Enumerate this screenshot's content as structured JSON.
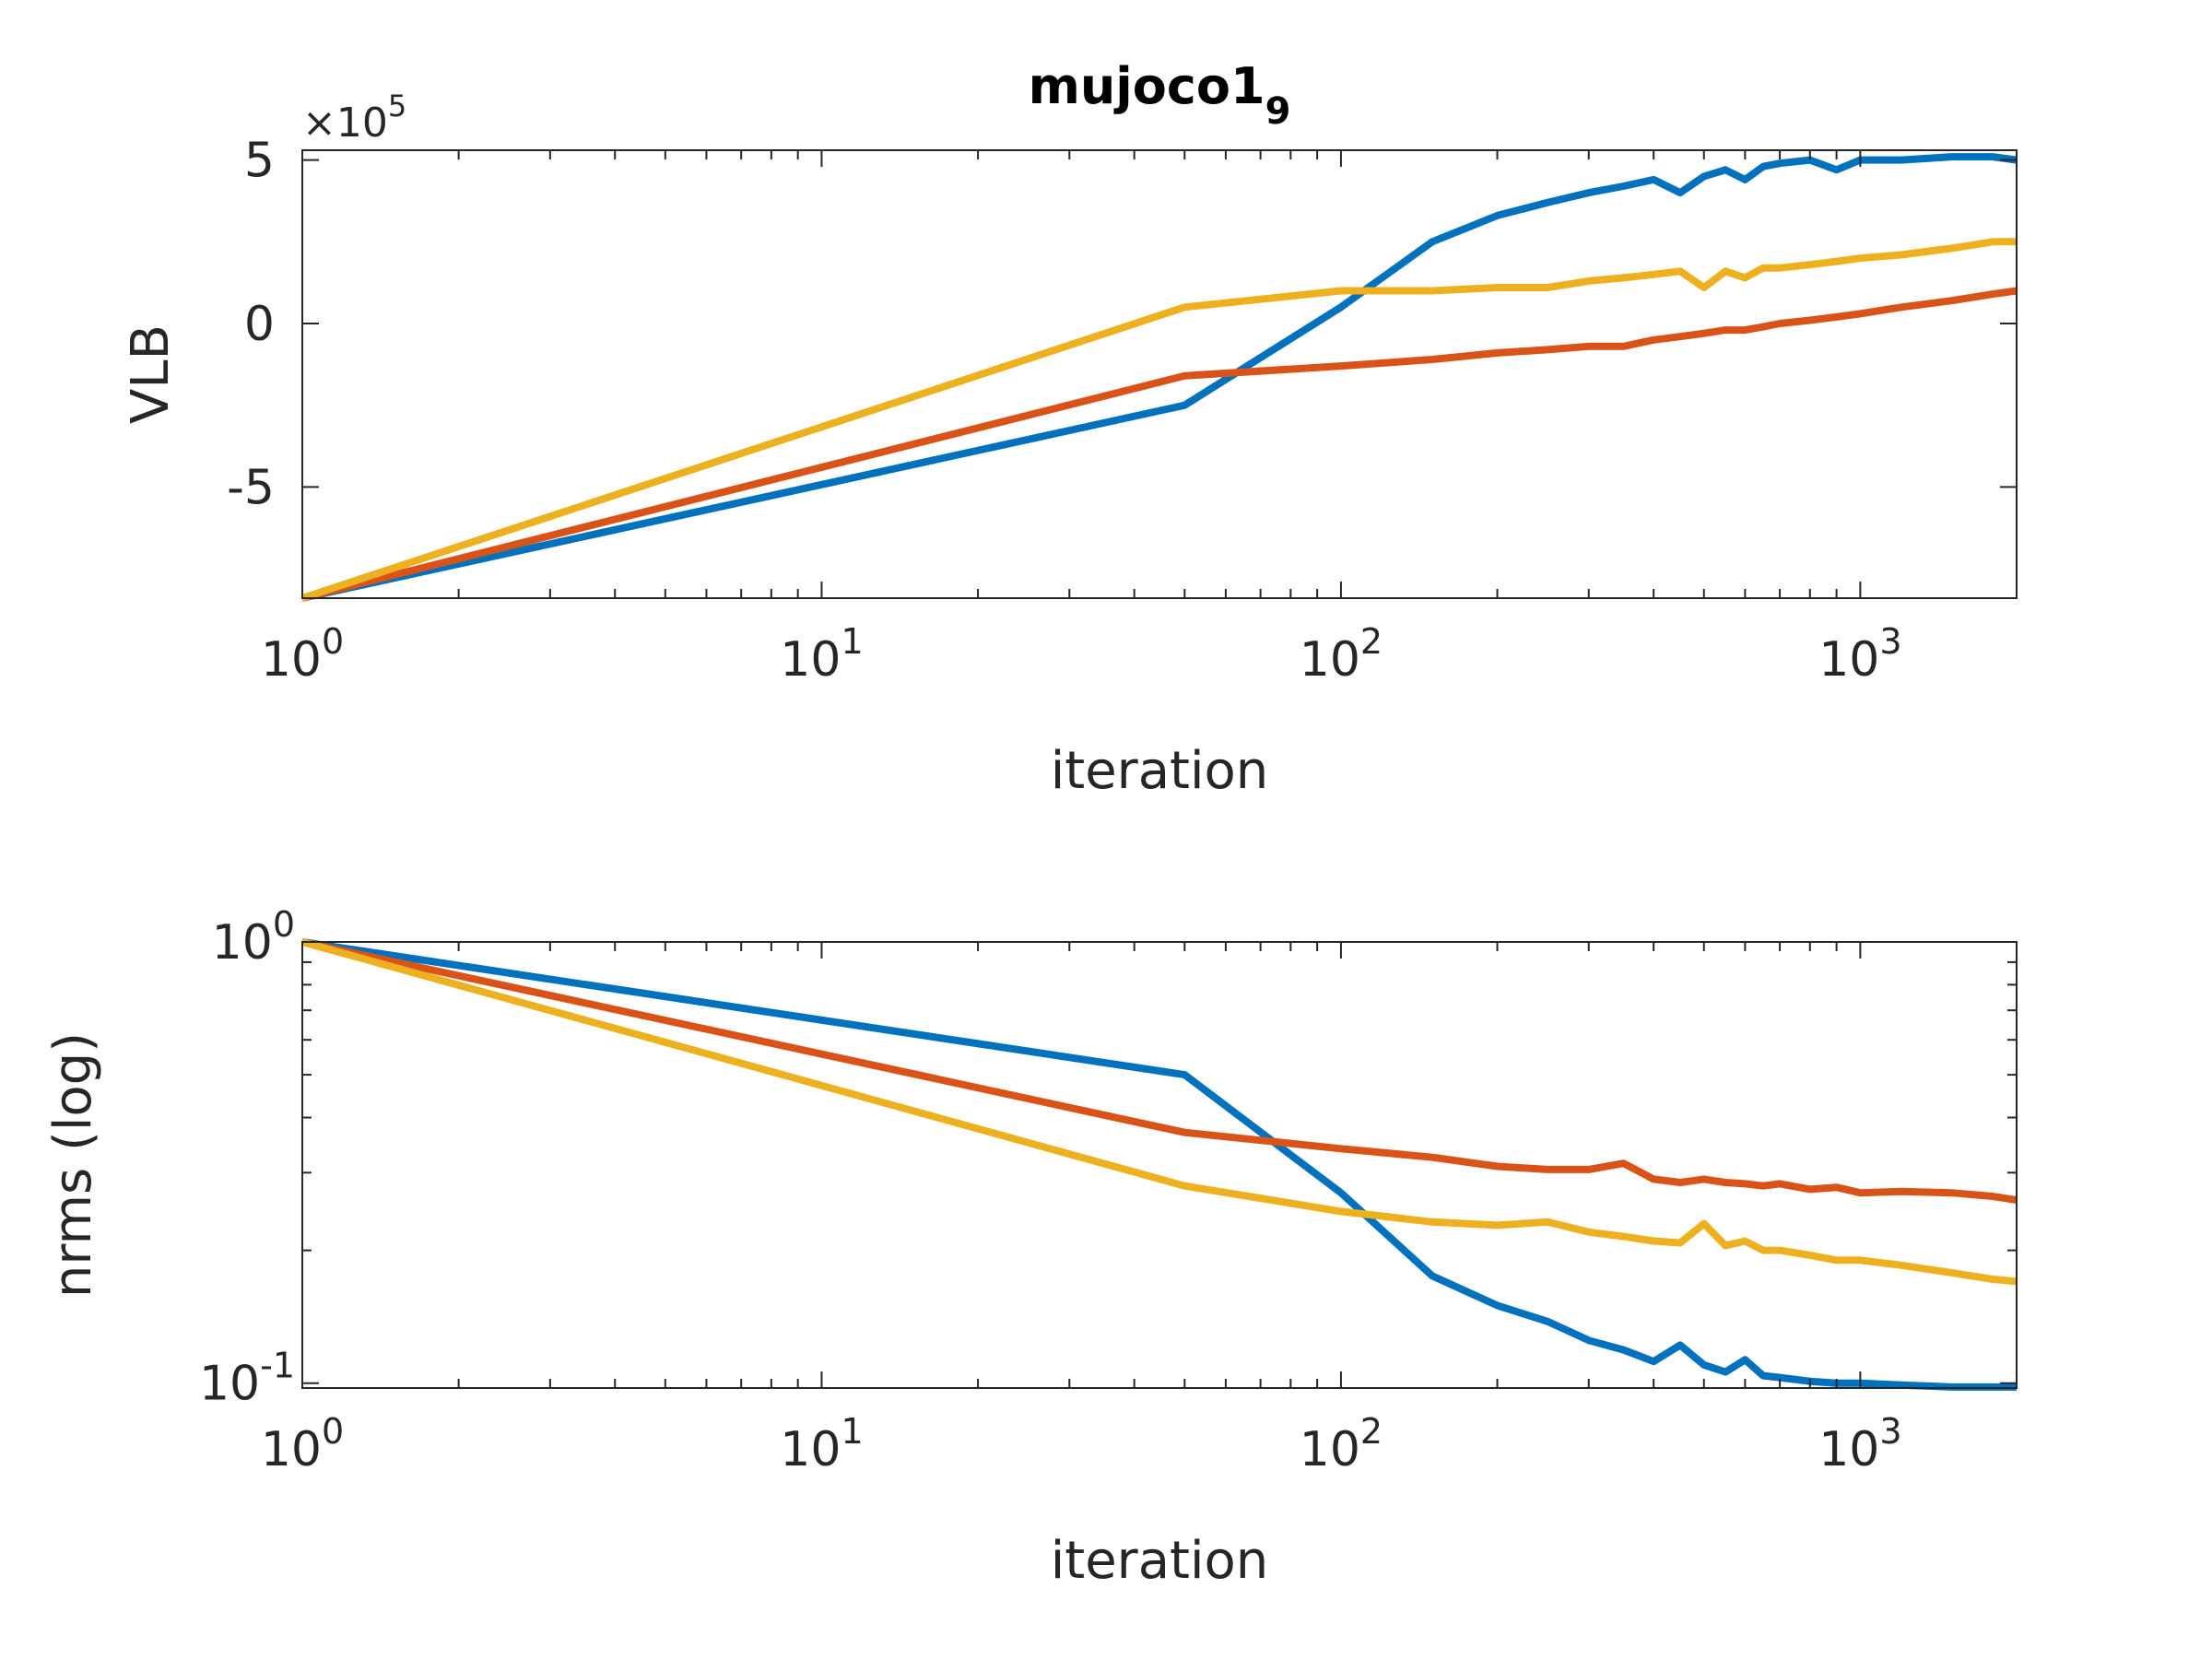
{
  "chart_data": [
    {
      "type": "line",
      "title_main": "mujoco1",
      "title_sub": "9",
      "xlabel": "iteration",
      "ylabel": "VLB",
      "xscale": "log",
      "xlim": [
        1,
        2000
      ],
      "ylim": [
        -8.4,
        5.3
      ],
      "y_multiplier_base": "×10",
      "y_multiplier_exp": "5",
      "x_ticks": [
        {
          "base": "10",
          "exp": "0",
          "value": 1
        },
        {
          "base": "10",
          "exp": "1",
          "value": 10
        },
        {
          "base": "10",
          "exp": "2",
          "value": 100
        },
        {
          "base": "10",
          "exp": "3",
          "value": 1000
        }
      ],
      "y_ticks": [
        {
          "label": "5",
          "value": 5
        },
        {
          "label": "0",
          "value": 0
        },
        {
          "label": "-5",
          "value": -5
        }
      ],
      "grid": false,
      "series": [
        {
          "name": "blue",
          "color": "#0072BD",
          "x": [
            1,
            50,
            100,
            150,
            200,
            250,
            300,
            350,
            400,
            450,
            500,
            550,
            600,
            650,
            700,
            800,
            900,
            1000,
            1200,
            1500,
            1800,
            2000
          ],
          "y": [
            -8.4,
            -2.5,
            0.5,
            2.5,
            3.3,
            3.7,
            4.0,
            4.2,
            4.4,
            4.0,
            4.5,
            4.7,
            4.4,
            4.8,
            4.9,
            5.0,
            4.7,
            5.0,
            5.0,
            5.1,
            5.1,
            5.0
          ]
        },
        {
          "name": "red",
          "color": "#D95319",
          "x": [
            1,
            50,
            100,
            150,
            200,
            250,
            300,
            350,
            400,
            450,
            500,
            550,
            600,
            650,
            700,
            800,
            900,
            1000,
            1200,
            1500,
            1800,
            2000
          ],
          "y": [
            -8.4,
            -1.6,
            -1.3,
            -1.1,
            -0.9,
            -0.8,
            -0.7,
            -0.7,
            -0.5,
            -0.4,
            -0.3,
            -0.2,
            -0.2,
            -0.1,
            0.0,
            0.1,
            0.2,
            0.3,
            0.5,
            0.7,
            0.9,
            1.0
          ]
        },
        {
          "name": "yellow",
          "color": "#EDB120",
          "x": [
            1,
            50,
            100,
            150,
            200,
            250,
            300,
            350,
            400,
            450,
            500,
            550,
            600,
            650,
            700,
            800,
            900,
            1000,
            1200,
            1500,
            1800,
            2000
          ],
          "y": [
            -8.4,
            0.5,
            1.0,
            1.0,
            1.1,
            1.1,
            1.3,
            1.4,
            1.5,
            1.6,
            1.1,
            1.6,
            1.4,
            1.7,
            1.7,
            1.8,
            1.9,
            2.0,
            2.1,
            2.3,
            2.5,
            2.5
          ]
        }
      ]
    },
    {
      "type": "line",
      "xlabel": "iteration",
      "ylabel": "nrms (log)",
      "xscale": "log",
      "yscale": "log",
      "xlim": [
        1,
        2000
      ],
      "ylim": [
        0.0975,
        1
      ],
      "x_ticks": [
        {
          "base": "10",
          "exp": "0",
          "value": 1
        },
        {
          "base": "10",
          "exp": "1",
          "value": 10
        },
        {
          "base": "10",
          "exp": "2",
          "value": 100
        },
        {
          "base": "10",
          "exp": "3",
          "value": 1000
        }
      ],
      "y_ticks": [
        {
          "base": "10",
          "exp": "0",
          "value": 1
        },
        {
          "base": "10",
          "exp": "-1",
          "value": 0.1
        }
      ],
      "grid": false,
      "series": [
        {
          "name": "blue",
          "color": "#0072BD",
          "x": [
            1,
            50,
            100,
            150,
            200,
            250,
            300,
            350,
            400,
            450,
            500,
            550,
            600,
            650,
            700,
            800,
            900,
            1000,
            1200,
            1500,
            1800,
            2000
          ],
          "y": [
            1.0,
            0.5,
            0.27,
            0.175,
            0.15,
            0.138,
            0.125,
            0.119,
            0.112,
            0.122,
            0.11,
            0.106,
            0.113,
            0.104,
            0.103,
            0.101,
            0.1,
            0.1,
            0.099,
            0.098,
            0.098,
            0.098
          ]
        },
        {
          "name": "red",
          "color": "#D95319",
          "x": [
            1,
            50,
            100,
            150,
            200,
            250,
            300,
            350,
            400,
            450,
            500,
            550,
            600,
            650,
            700,
            800,
            900,
            1000,
            1200,
            1500,
            1800,
            2000
          ],
          "y": [
            1.0,
            0.37,
            0.34,
            0.325,
            0.31,
            0.305,
            0.305,
            0.315,
            0.29,
            0.285,
            0.29,
            0.285,
            0.283,
            0.28,
            0.283,
            0.275,
            0.278,
            0.27,
            0.272,
            0.27,
            0.265,
            0.26
          ]
        },
        {
          "name": "yellow",
          "color": "#EDB120",
          "x": [
            1,
            50,
            100,
            150,
            200,
            250,
            300,
            350,
            400,
            450,
            500,
            550,
            600,
            650,
            700,
            800,
            900,
            1000,
            1200,
            1500,
            1800,
            2000
          ],
          "y": [
            1.0,
            0.28,
            0.245,
            0.232,
            0.228,
            0.232,
            0.22,
            0.215,
            0.21,
            0.208,
            0.23,
            0.205,
            0.21,
            0.2,
            0.2,
            0.195,
            0.19,
            0.19,
            0.185,
            0.178,
            0.172,
            0.17
          ]
        }
      ]
    }
  ]
}
